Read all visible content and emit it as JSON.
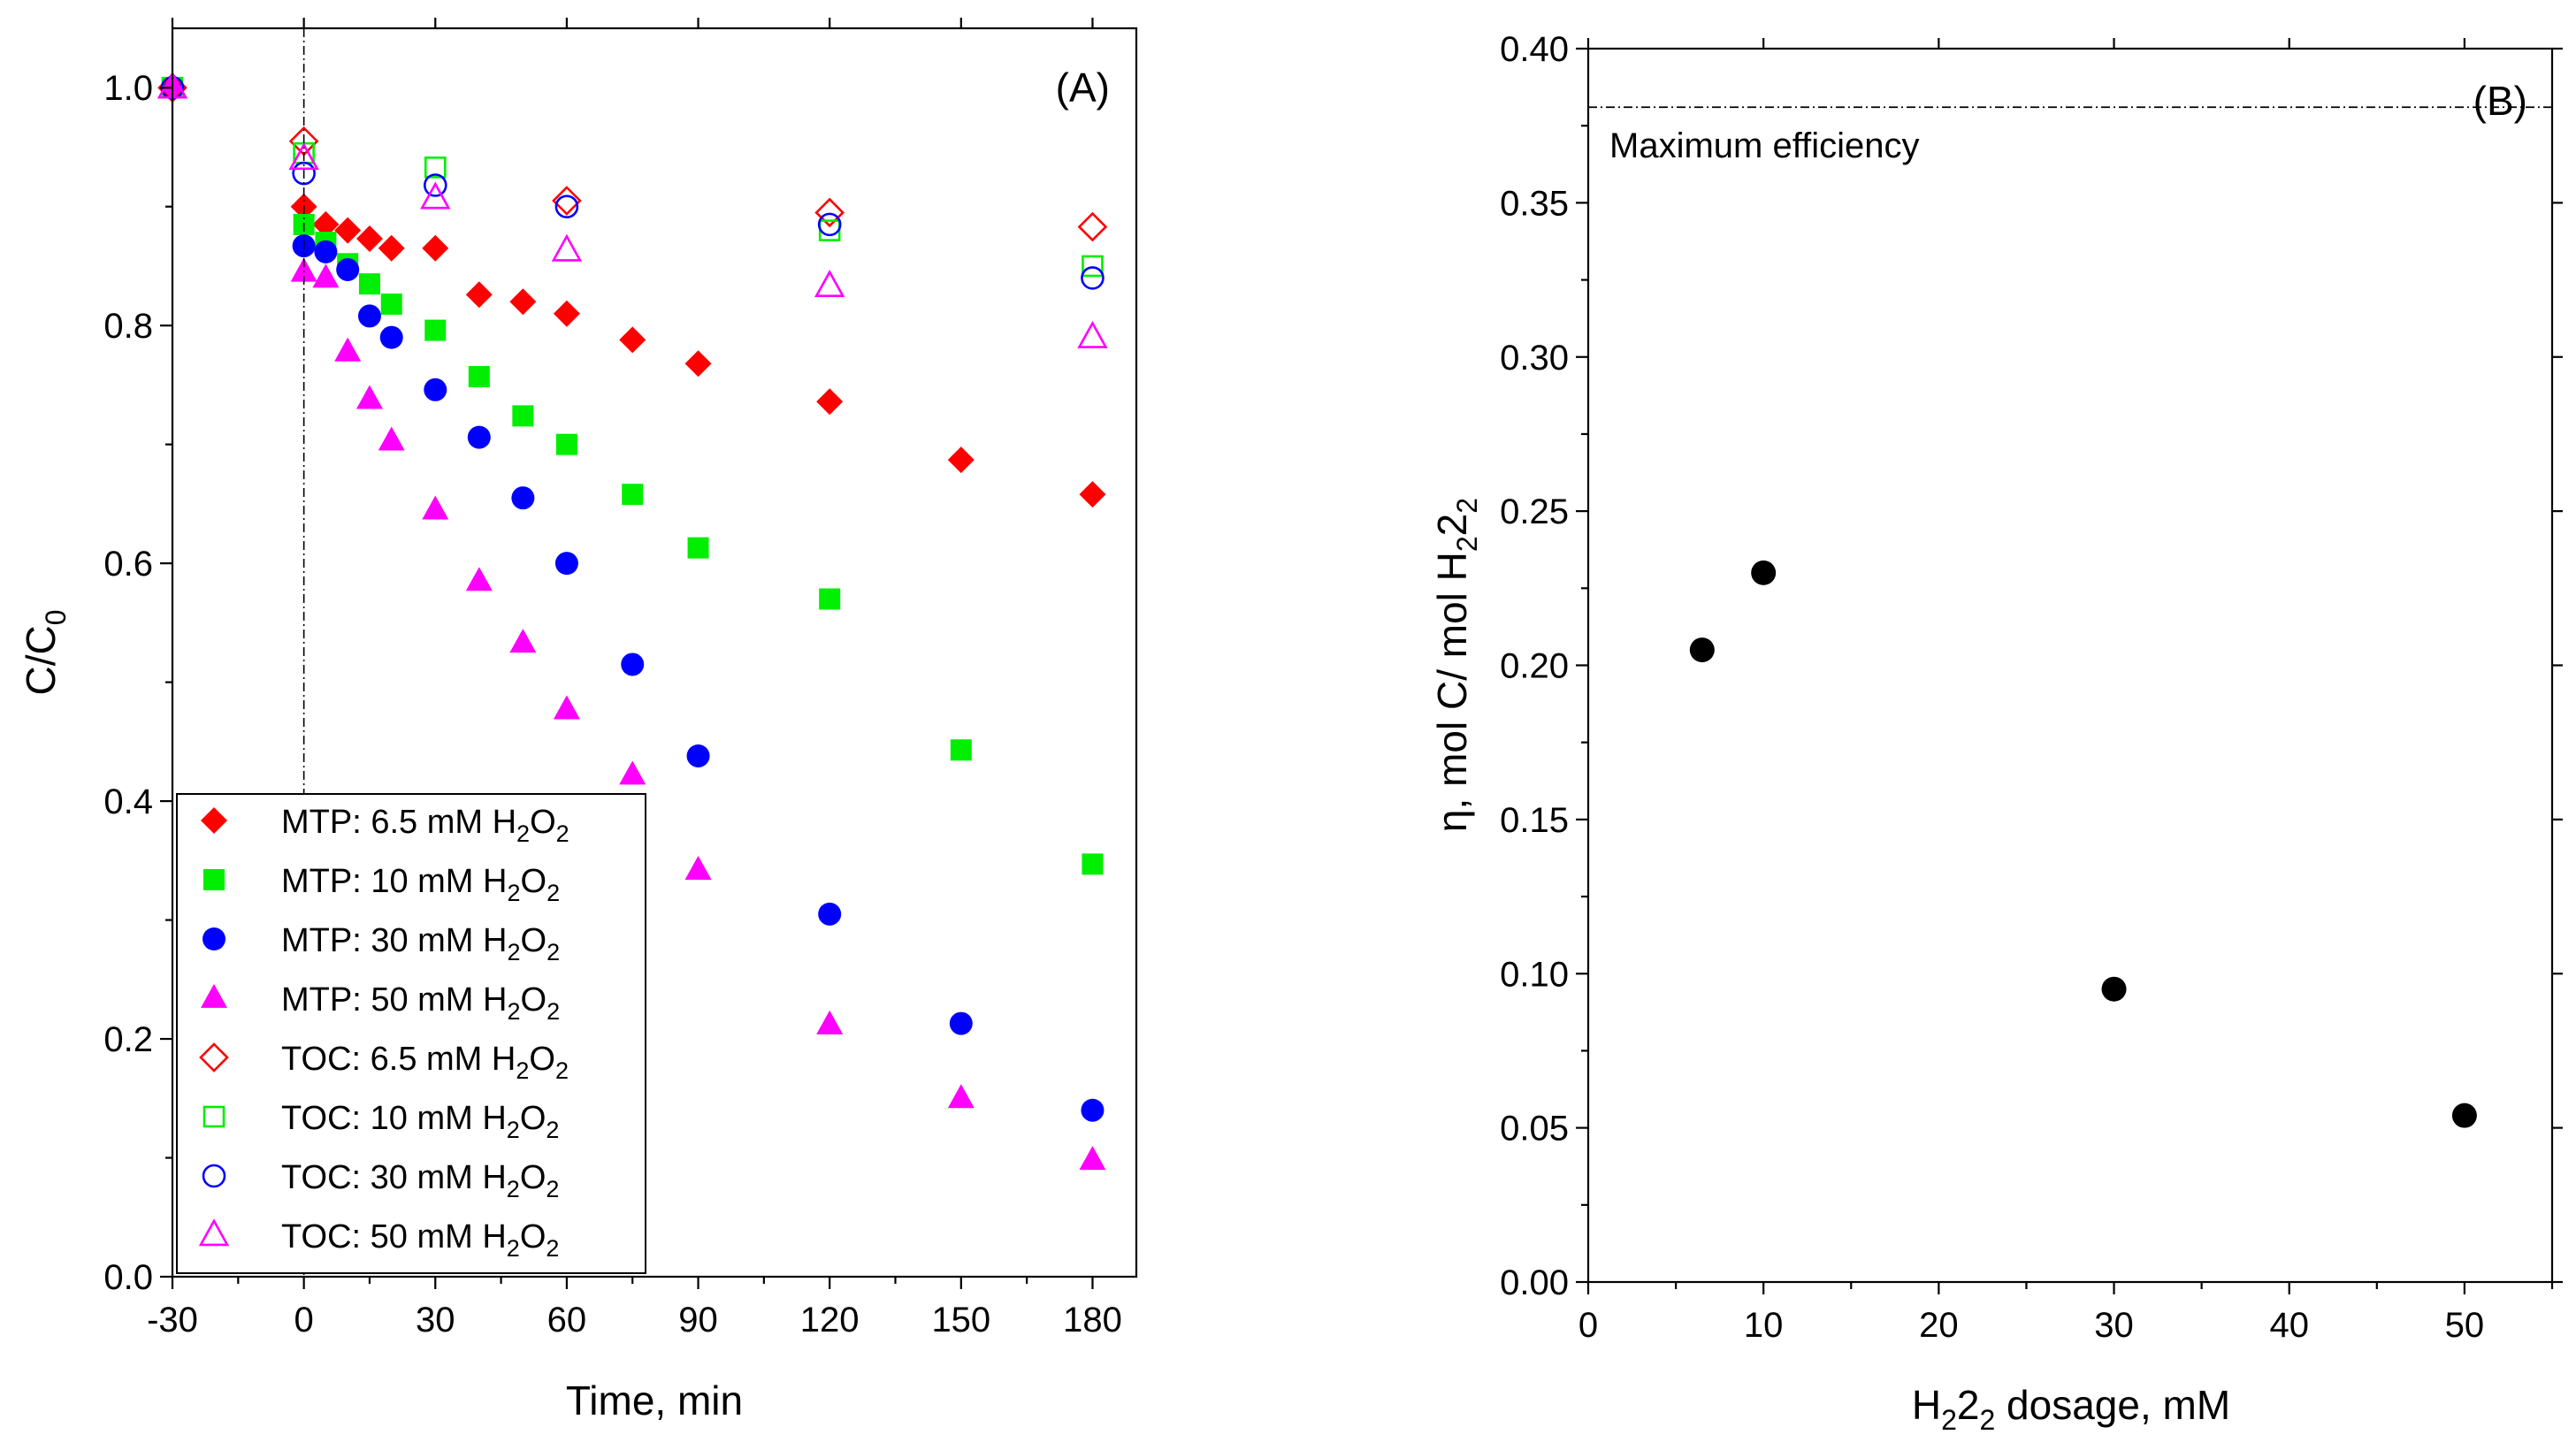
{
  "chart_data": [
    {
      "panel": "(A)",
      "type": "scatter",
      "xlabel": "Time, min",
      "ylabel": "C/C0",
      "xlim": [
        -30,
        190
      ],
      "ylim": [
        0,
        1.05
      ],
      "xticks": [
        -30,
        0,
        30,
        60,
        90,
        120,
        150,
        180
      ],
      "yticks": [
        0.0,
        0.2,
        0.4,
        0.6,
        0.8,
        1.0
      ],
      "ytick_labels": [
        "0.0",
        "0.2",
        "0.4",
        "0.6",
        "0.8",
        "1.0"
      ],
      "reference_line_x": 0,
      "legend_position": "bottom-left",
      "series": [
        {
          "name": "MTP: 6.5 mM H2O2",
          "label_prefix": "MTP: 6.5 mM H",
          "color": "#ff0000",
          "marker": "diamond",
          "filled": true,
          "x": [
            -30,
            0,
            5,
            10,
            15,
            20,
            30,
            40,
            50,
            60,
            75,
            90,
            120,
            150,
            180
          ],
          "y": [
            1.0,
            0.9,
            0.885,
            0.88,
            0.873,
            0.865,
            0.865,
            0.826,
            0.82,
            0.81,
            0.788,
            0.768,
            0.736,
            0.687,
            0.658
          ]
        },
        {
          "name": "MTP: 10 mM H2O2",
          "label_prefix": "MTP: 10 mM H",
          "color": "#00ee00",
          "marker": "square",
          "filled": true,
          "x": [
            -30,
            0,
            5,
            10,
            15,
            20,
            30,
            40,
            50,
            60,
            75,
            90,
            120,
            150,
            180
          ],
          "y": [
            1.0,
            0.885,
            0.87,
            0.852,
            0.835,
            0.818,
            0.796,
            0.757,
            0.724,
            0.7,
            0.658,
            0.613,
            0.57,
            0.443,
            0.347
          ]
        },
        {
          "name": "MTP: 30 mM H2O2",
          "label_prefix": "MTP: 30 mM H",
          "color": "#0000ff",
          "marker": "circle",
          "filled": true,
          "x": [
            -30,
            0,
            5,
            10,
            15,
            20,
            30,
            40,
            50,
            60,
            75,
            90,
            120,
            150,
            180
          ],
          "y": [
            1.0,
            0.867,
            0.862,
            0.847,
            0.808,
            0.79,
            0.746,
            0.706,
            0.655,
            0.6,
            0.515,
            0.438,
            0.305,
            0.213,
            0.14
          ]
        },
        {
          "name": "MTP: 50 mM H2O2",
          "label_prefix": "MTP: 50 mM H",
          "color": "#ff00ff",
          "marker": "triangle",
          "filled": true,
          "x": [
            -30,
            0,
            5,
            10,
            15,
            20,
            30,
            40,
            50,
            60,
            75,
            90,
            120,
            150,
            180
          ],
          "y": [
            1.0,
            0.845,
            0.84,
            0.778,
            0.738,
            0.703,
            0.645,
            0.585,
            0.533,
            0.477,
            0.422,
            0.342,
            0.212,
            0.15,
            0.098
          ]
        },
        {
          "name": "TOC: 6.5 mM H2O2",
          "label_prefix": "TOC: 6.5 mM H",
          "color": "#ff0000",
          "marker": "diamond",
          "filled": false,
          "x": [
            -30,
            0,
            60,
            120,
            180
          ],
          "y": [
            1.0,
            0.955,
            0.905,
            0.895,
            0.883
          ]
        },
        {
          "name": "TOC: 10 mM H2O2",
          "label_prefix": "TOC: 10 mM H",
          "color": "#00ee00",
          "marker": "square",
          "filled": false,
          "x": [
            -30,
            0,
            30,
            120,
            180
          ],
          "y": [
            1.0,
            0.945,
            0.933,
            0.88,
            0.85
          ]
        },
        {
          "name": "TOC: 30 mM H2O2",
          "label_prefix": "TOC: 30 mM H",
          "color": "#0000ff",
          "marker": "circle",
          "filled": false,
          "x": [
            -30,
            0,
            30,
            60,
            120,
            180
          ],
          "y": [
            1.0,
            0.928,
            0.918,
            0.9,
            0.885,
            0.84
          ]
        },
        {
          "name": "TOC: 50 mM H2O2",
          "label_prefix": "TOC: 50 mM H",
          "color": "#ff00ff",
          "marker": "triangle",
          "filled": false,
          "x": [
            -30,
            0,
            30,
            60,
            120,
            180
          ],
          "y": [
            1.0,
            0.94,
            0.907,
            0.863,
            0.833,
            0.79
          ]
        }
      ]
    },
    {
      "panel": "(B)",
      "type": "scatter",
      "xlabel_prefix": "H",
      "xlabel_suffix": " dosage, mM",
      "ylabel_prefix": "η, mol C/ mol H",
      "xlim": [
        0,
        55
      ],
      "ylim": [
        0,
        0.4
      ],
      "xticks": [
        0,
        10,
        20,
        30,
        40,
        50
      ],
      "yticks": [
        0.0,
        0.05,
        0.1,
        0.15,
        0.2,
        0.25,
        0.3,
        0.35,
        0.4
      ],
      "ytick_labels": [
        "0.00",
        "0.05",
        "0.10",
        "0.15",
        "0.20",
        "0.25",
        "0.30",
        "0.35",
        "0.40"
      ],
      "reference_line": {
        "y": 0.381,
        "label": "Maximum efficiency"
      },
      "series": [
        {
          "name": "efficiency",
          "color": "#000000",
          "marker": "circle",
          "filled": true,
          "x": [
            6.5,
            10,
            30,
            50
          ],
          "y": [
            0.205,
            0.23,
            0.095,
            0.054
          ]
        }
      ]
    }
  ],
  "text": {
    "sub_c": "0",
    "sub_2": "2",
    "c_over_c": "C/C"
  }
}
